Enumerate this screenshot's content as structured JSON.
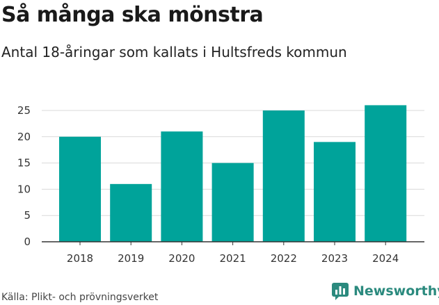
{
  "header": {
    "title": "Så många ska mönstra",
    "subtitle": "Antal 18-åringar som kallats i Hultsfreds kommun"
  },
  "footer": {
    "source": "Källa: Plikt- och prövningsverket",
    "brand": "Newsworthy"
  },
  "colors": {
    "bar": "#00a39a",
    "grid": "#d9d9d9",
    "axis": "#333333",
    "brand": "#2b8a7e"
  },
  "chart_data": {
    "type": "bar",
    "title": "",
    "xlabel": "",
    "ylabel": "",
    "categories": [
      "2018",
      "2019",
      "2020",
      "2021",
      "2022",
      "2023",
      "2024"
    ],
    "values": [
      20,
      11,
      21,
      15,
      25,
      19,
      26
    ],
    "ylim": [
      0,
      25
    ],
    "yticks": [
      0,
      5,
      10,
      15,
      20,
      25
    ],
    "grid": true,
    "legend": "none"
  }
}
